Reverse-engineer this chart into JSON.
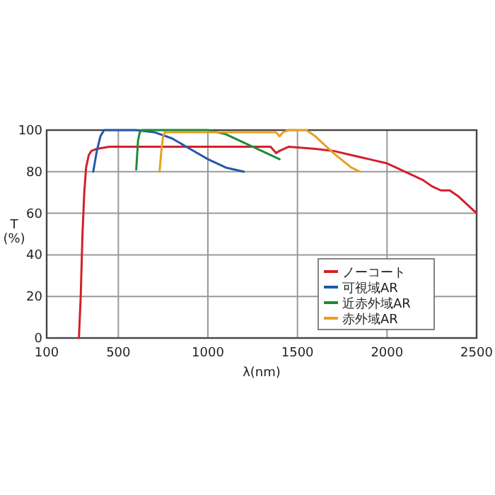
{
  "chart_data": {
    "type": "line",
    "xlabel": "λ(nm)",
    "ylabel": "T\n(%)",
    "xlim": [
      100,
      2500
    ],
    "xticks": [
      100,
      500,
      1000,
      1500,
      2000,
      2500
    ],
    "ylim": [
      0,
      100
    ],
    "yticks": [
      0,
      20,
      40,
      60,
      80,
      100
    ],
    "grid": true,
    "legend": "bottom right",
    "line_style": "solid",
    "series": [
      {
        "name": "ノーコート",
        "color": "#d2202a",
        "x": [
          280,
          290,
          300,
          310,
          320,
          335,
          350,
          380,
          450,
          600,
          800,
          1000,
          1200,
          1350,
          1380,
          1400,
          1450,
          1600,
          1700,
          1800,
          1900,
          2000,
          2050,
          2100,
          2150,
          2200,
          2250,
          2300,
          2350,
          2400,
          2450,
          2500
        ],
        "values": [
          0,
          20,
          50,
          70,
          82,
          88,
          90,
          91,
          92,
          92,
          92,
          92,
          92,
          92,
          89,
          90,
          92,
          91,
          90,
          88,
          86,
          84,
          82,
          80,
          78,
          76,
          73,
          71,
          71,
          68,
          64,
          60
        ]
      },
      {
        "name": "可視域AR",
        "color": "#2458a8",
        "x": [
          360,
          370,
          380,
          400,
          420,
          500,
          600,
          700,
          800,
          900,
          1000,
          1100,
          1200
        ],
        "values": [
          80,
          85,
          90,
          97,
          100,
          100,
          100,
          99,
          96,
          91,
          86,
          82,
          80
        ]
      },
      {
        "name": "近赤外域AR",
        "color": "#1f8a3a",
        "x": [
          600,
          605,
          610,
          620,
          630,
          700,
          800,
          1000,
          1100,
          1200,
          1300,
          1400
        ],
        "values": [
          81,
          88,
          95,
          99,
          100,
          100,
          100,
          100,
          98,
          94,
          90,
          86
        ]
      },
      {
        "name": "赤外域AR",
        "color": "#e8a020",
        "x": [
          730,
          740,
          750,
          760,
          800,
          1000,
          1200,
          1380,
          1400,
          1420,
          1450,
          1550,
          1600,
          1700,
          1800,
          1850
        ],
        "values": [
          80,
          90,
          97,
          99,
          99,
          99,
          99,
          99,
          97,
          99,
          100,
          100,
          97,
          89,
          82,
          80
        ]
      }
    ]
  }
}
